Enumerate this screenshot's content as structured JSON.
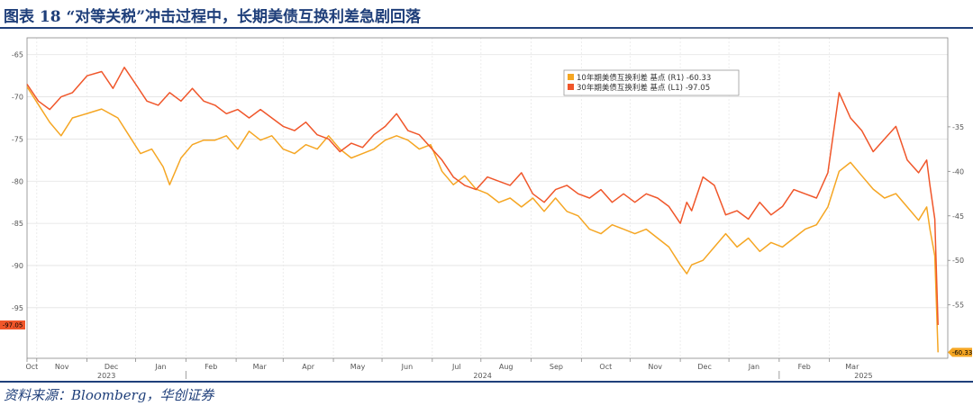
{
  "header": {
    "title": "图表 18 “对等关税”冲击过程中，长期美债互换利差急剧回落"
  },
  "footer": {
    "source": "资料来源：Bloomberg，华创证券"
  },
  "chart_data": {
    "type": "line",
    "left_axis": {
      "ticks": [
        -65,
        -70,
        -75,
        -80,
        -85,
        -90,
        -95
      ],
      "ylim": [
        -101,
        -63
      ]
    },
    "right_axis": {
      "ticks": [
        -35,
        -40,
        -45,
        -50,
        -55
      ],
      "ylim": [
        -61,
        -25
      ]
    },
    "month_labels": [
      "Oct",
      "Nov",
      "Dec",
      "Jan",
      "Feb",
      "Mar",
      "Apr",
      "May",
      "Jun",
      "Jul",
      "Aug",
      "Sep",
      "Oct",
      "Nov",
      "Dec",
      "Jan",
      "Feb",
      "Mar"
    ],
    "year_labels": [
      "2023",
      "2024",
      "2025"
    ],
    "x_start": "2023-09-25",
    "x_end": "2025-04-15",
    "grid": true,
    "legend_position": "top-right",
    "series": [
      {
        "name": "10年期美债互换利差 基点 (R1) -60.33",
        "axis": "right",
        "color": "#f5a623",
        "last_value": -60.33,
        "points": [
          [
            "2023-09-25",
            -30.5
          ],
          [
            "2023-10-02",
            -32.5
          ],
          [
            "2023-10-09",
            -34.5
          ],
          [
            "2023-10-16",
            -36.0
          ],
          [
            "2023-10-23",
            -34.0
          ],
          [
            "2023-11-01",
            -33.5
          ],
          [
            "2023-11-10",
            -33.0
          ],
          [
            "2023-11-20",
            -34.0
          ],
          [
            "2023-11-27",
            -36.0
          ],
          [
            "2023-12-04",
            -38.0
          ],
          [
            "2023-12-11",
            -37.5
          ],
          [
            "2023-12-18",
            -39.5
          ],
          [
            "2023-12-22",
            -41.5
          ],
          [
            "2023-12-29",
            -38.5
          ],
          [
            "2024-01-05",
            -37.0
          ],
          [
            "2024-01-12",
            -36.5
          ],
          [
            "2024-01-19",
            -36.5
          ],
          [
            "2024-01-26",
            -36.0
          ],
          [
            "2024-02-02",
            -37.5
          ],
          [
            "2024-02-09",
            -35.5
          ],
          [
            "2024-02-16",
            -36.5
          ],
          [
            "2024-02-23",
            -36.0
          ],
          [
            "2024-03-01",
            -37.5
          ],
          [
            "2024-03-08",
            -38.0
          ],
          [
            "2024-03-15",
            -37.0
          ],
          [
            "2024-03-22",
            -37.5
          ],
          [
            "2024-03-29",
            -36.0
          ],
          [
            "2024-04-05",
            -37.5
          ],
          [
            "2024-04-12",
            -38.5
          ],
          [
            "2024-04-19",
            -38.0
          ],
          [
            "2024-04-26",
            -37.5
          ],
          [
            "2024-05-03",
            -36.5
          ],
          [
            "2024-05-10",
            -36.0
          ],
          [
            "2024-05-17",
            -36.5
          ],
          [
            "2024-05-24",
            -37.5
          ],
          [
            "2024-05-31",
            -37.0
          ],
          [
            "2024-06-07",
            -40.0
          ],
          [
            "2024-06-14",
            -41.5
          ],
          [
            "2024-06-21",
            -40.5
          ],
          [
            "2024-06-28",
            -42.0
          ],
          [
            "2024-07-05",
            -42.5
          ],
          [
            "2024-07-12",
            -43.5
          ],
          [
            "2024-07-19",
            -43.0
          ],
          [
            "2024-07-26",
            -44.0
          ],
          [
            "2024-08-02",
            -43.0
          ],
          [
            "2024-08-09",
            -44.5
          ],
          [
            "2024-08-16",
            -43.0
          ],
          [
            "2024-08-23",
            -44.5
          ],
          [
            "2024-08-30",
            -45.0
          ],
          [
            "2024-09-06",
            -46.5
          ],
          [
            "2024-09-13",
            -47.0
          ],
          [
            "2024-09-20",
            -46.0
          ],
          [
            "2024-09-27",
            -46.5
          ],
          [
            "2024-10-04",
            -47.0
          ],
          [
            "2024-10-11",
            -46.5
          ],
          [
            "2024-10-18",
            -47.5
          ],
          [
            "2024-10-25",
            -48.5
          ],
          [
            "2024-11-01",
            -50.5
          ],
          [
            "2024-11-05",
            -51.5
          ],
          [
            "2024-11-08",
            -50.5
          ],
          [
            "2024-11-15",
            -50.0
          ],
          [
            "2024-11-22",
            -48.5
          ],
          [
            "2024-11-29",
            -47.0
          ],
          [
            "2024-12-06",
            -48.5
          ],
          [
            "2024-12-13",
            -47.5
          ],
          [
            "2024-12-20",
            -49.0
          ],
          [
            "2024-12-27",
            -48.0
          ],
          [
            "2025-01-03",
            -48.5
          ],
          [
            "2025-01-10",
            -47.5
          ],
          [
            "2025-01-17",
            -46.5
          ],
          [
            "2025-01-24",
            -46.0
          ],
          [
            "2025-01-31",
            -44.0
          ],
          [
            "2025-02-07",
            -40.0
          ],
          [
            "2025-02-14",
            -39.0
          ],
          [
            "2025-02-21",
            -40.5
          ],
          [
            "2025-02-28",
            -42.0
          ],
          [
            "2025-03-07",
            -43.0
          ],
          [
            "2025-03-14",
            -42.5
          ],
          [
            "2025-03-21",
            -44.0
          ],
          [
            "2025-03-28",
            -45.5
          ],
          [
            "2025-04-02",
            -44.0
          ],
          [
            "2025-04-04",
            -46.5
          ],
          [
            "2025-04-07",
            -49.5
          ],
          [
            "2025-04-09",
            -60.33
          ]
        ]
      },
      {
        "name": "30年期美债互换利差 基点 (L1) -97.05",
        "axis": "left",
        "color": "#f0562a",
        "last_value": -97.05,
        "points": [
          [
            "2023-09-25",
            -68.5
          ],
          [
            "2023-10-02",
            -70.5
          ],
          [
            "2023-10-09",
            -71.5
          ],
          [
            "2023-10-16",
            -70.0
          ],
          [
            "2023-10-23",
            -69.5
          ],
          [
            "2023-11-01",
            -67.5
          ],
          [
            "2023-11-10",
            -67.0
          ],
          [
            "2023-11-17",
            -69.0
          ],
          [
            "2023-11-24",
            -66.5
          ],
          [
            "2023-12-01",
            -68.5
          ],
          [
            "2023-12-08",
            -70.5
          ],
          [
            "2023-12-15",
            -71.0
          ],
          [
            "2023-12-22",
            -69.5
          ],
          [
            "2023-12-29",
            -70.5
          ],
          [
            "2024-01-05",
            -69.0
          ],
          [
            "2024-01-12",
            -70.5
          ],
          [
            "2024-01-19",
            -71.0
          ],
          [
            "2024-01-26",
            -72.0
          ],
          [
            "2024-02-02",
            -71.5
          ],
          [
            "2024-02-09",
            -72.5
          ],
          [
            "2024-02-16",
            -71.5
          ],
          [
            "2024-02-23",
            -72.5
          ],
          [
            "2024-03-01",
            -73.5
          ],
          [
            "2024-03-08",
            -74.0
          ],
          [
            "2024-03-15",
            -73.0
          ],
          [
            "2024-03-22",
            -74.5
          ],
          [
            "2024-03-29",
            -75.0
          ],
          [
            "2024-04-05",
            -76.5
          ],
          [
            "2024-04-12",
            -75.5
          ],
          [
            "2024-04-19",
            -76.0
          ],
          [
            "2024-04-26",
            -74.5
          ],
          [
            "2024-05-03",
            -73.5
          ],
          [
            "2024-05-10",
            -72.0
          ],
          [
            "2024-05-17",
            -74.0
          ],
          [
            "2024-05-24",
            -74.5
          ],
          [
            "2024-05-31",
            -76.0
          ],
          [
            "2024-06-07",
            -77.5
          ],
          [
            "2024-06-14",
            -79.5
          ],
          [
            "2024-06-21",
            -80.5
          ],
          [
            "2024-06-28",
            -81.0
          ],
          [
            "2024-07-05",
            -79.5
          ],
          [
            "2024-07-12",
            -80.0
          ],
          [
            "2024-07-19",
            -80.5
          ],
          [
            "2024-07-26",
            -79.0
          ],
          [
            "2024-08-02",
            -81.5
          ],
          [
            "2024-08-09",
            -82.5
          ],
          [
            "2024-08-16",
            -81.0
          ],
          [
            "2024-08-23",
            -80.5
          ],
          [
            "2024-08-30",
            -81.5
          ],
          [
            "2024-09-06",
            -82.0
          ],
          [
            "2024-09-13",
            -81.0
          ],
          [
            "2024-09-20",
            -82.5
          ],
          [
            "2024-09-27",
            -81.5
          ],
          [
            "2024-10-04",
            -82.5
          ],
          [
            "2024-10-11",
            -81.5
          ],
          [
            "2024-10-18",
            -82.0
          ],
          [
            "2024-10-25",
            -83.0
          ],
          [
            "2024-11-01",
            -85.0
          ],
          [
            "2024-11-05",
            -82.5
          ],
          [
            "2024-11-08",
            -83.5
          ],
          [
            "2024-11-15",
            -79.5
          ],
          [
            "2024-11-22",
            -80.5
          ],
          [
            "2024-11-29",
            -84.0
          ],
          [
            "2024-12-06",
            -83.5
          ],
          [
            "2024-12-13",
            -84.5
          ],
          [
            "2024-12-20",
            -82.5
          ],
          [
            "2024-12-27",
            -84.0
          ],
          [
            "2025-01-03",
            -83.0
          ],
          [
            "2025-01-10",
            -81.0
          ],
          [
            "2025-01-17",
            -81.5
          ],
          [
            "2025-01-24",
            -82.0
          ],
          [
            "2025-01-31",
            -79.0
          ],
          [
            "2025-02-07",
            -69.5
          ],
          [
            "2025-02-14",
            -72.5
          ],
          [
            "2025-02-21",
            -74.0
          ],
          [
            "2025-02-28",
            -76.5
          ],
          [
            "2025-03-07",
            -75.0
          ],
          [
            "2025-03-14",
            -73.5
          ],
          [
            "2025-03-21",
            -77.5
          ],
          [
            "2025-03-28",
            -79.0
          ],
          [
            "2025-04-02",
            -77.5
          ],
          [
            "2025-04-04",
            -80.5
          ],
          [
            "2025-04-07",
            -84.5
          ],
          [
            "2025-04-09",
            -97.05
          ]
        ]
      }
    ]
  }
}
